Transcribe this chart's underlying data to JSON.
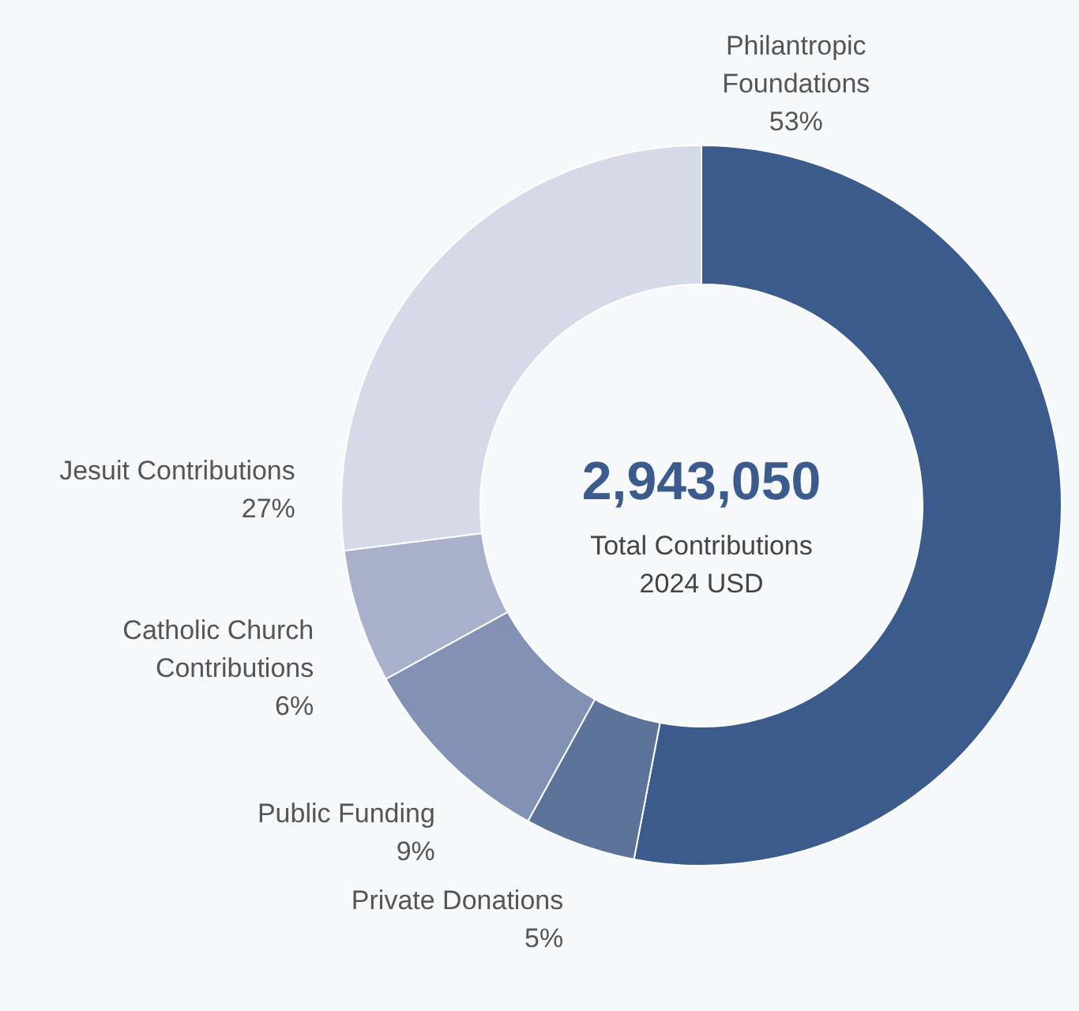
{
  "chart_data": {
    "type": "donut",
    "categories": [
      "Philantropic Foundations",
      "Private Donations",
      "Public Funding",
      "Catholic Church Contributions",
      "Jesuit Contributions"
    ],
    "values": [
      53,
      5,
      9,
      6,
      27
    ],
    "colors": [
      "#3a5b8b",
      "#5d7399",
      "#8391b5",
      "#a9b0cc",
      "#d6d9e7"
    ],
    "annotations": [
      "2,943,050",
      "Total Contributions",
      "2024 USD"
    ],
    "value_labels": [
      "53%",
      "5%",
      "9%",
      "6%",
      "27%"
    ]
  }
}
